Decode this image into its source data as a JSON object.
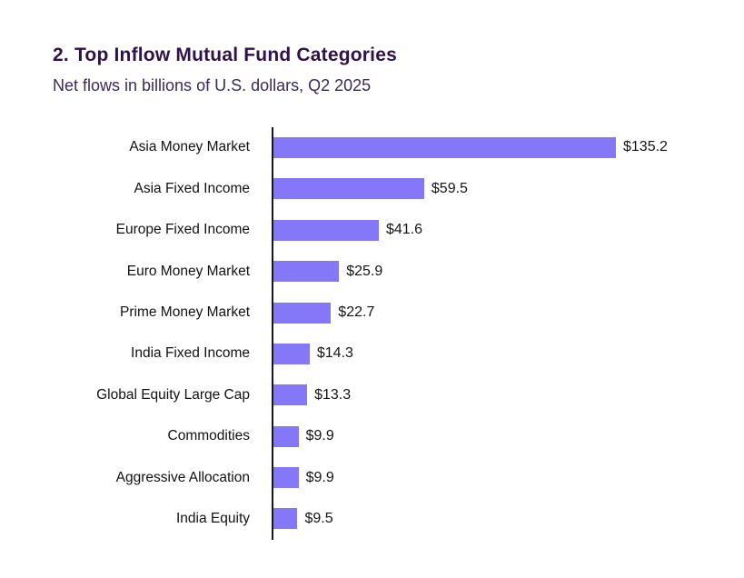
{
  "header": {
    "title": "2. Top Inflow Mutual Fund Categories",
    "subtitle": "Net flows in billions of U.S. dollars, Q2 2025"
  },
  "colors": {
    "bar": "#8478f8",
    "title": "#2e1248",
    "subtitle": "#3b2a5e",
    "axis": "#16142b",
    "label": "#121212",
    "background": "#ffffff"
  },
  "chart_data": {
    "type": "bar",
    "orientation": "horizontal",
    "title": "2. Top Inflow Mutual Fund Categories",
    "subtitle": "Net flows in billions of U.S. dollars, Q2 2025",
    "xlabel": "",
    "ylabel": "",
    "unit": "billions USD",
    "period": "Q2 2025",
    "grid": false,
    "legend": false,
    "xlim": [
      0,
      140
    ],
    "categories": [
      "Asia Money Market",
      "Asia Fixed Income",
      "Europe Fixed Income",
      "Euro Money Market",
      "Prime Money Market",
      "India Fixed Income",
      "Global Equity Large Cap",
      "Commodities",
      "Aggressive Allocation",
      "India Equity"
    ],
    "values": [
      135.2,
      59.5,
      41.6,
      25.9,
      22.7,
      14.3,
      13.3,
      9.9,
      9.9,
      9.5
    ],
    "value_labels": [
      "$135.2",
      "$59.5",
      "$41.6",
      "$25.9",
      "$22.7",
      "$14.3",
      "$13.3",
      "$9.9",
      "$9.9",
      "$9.5"
    ]
  }
}
